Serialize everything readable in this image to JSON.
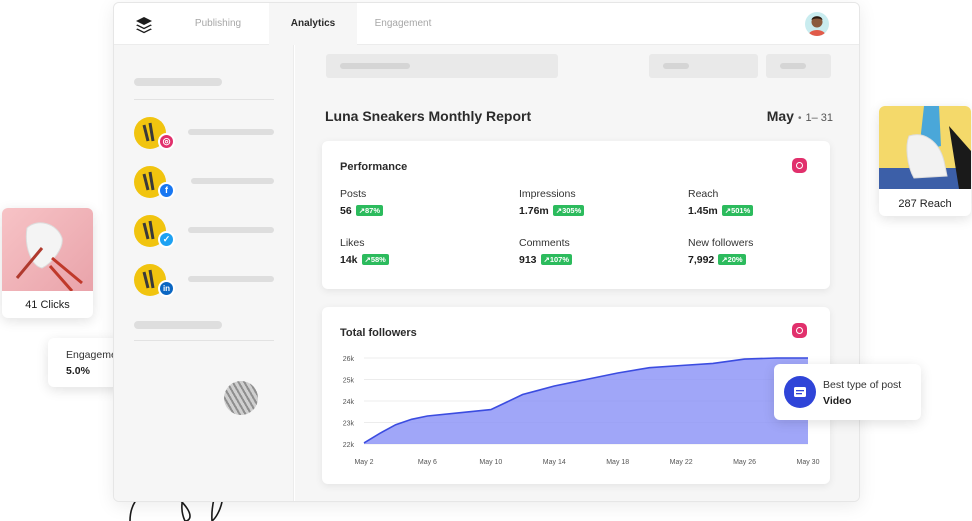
{
  "nav": {
    "tabs": [
      {
        "label": "Publishing"
      },
      {
        "label": "Analytics"
      },
      {
        "label": "Engagement"
      }
    ],
    "active_tab": "Analytics"
  },
  "report": {
    "title": "Luna Sneakers Monthly Report",
    "month": "May",
    "range": "1– 31"
  },
  "performance": {
    "title": "Performance",
    "network_icon": "instagram-icon",
    "metrics": [
      {
        "label": "Posts",
        "value": "56",
        "change": "87%"
      },
      {
        "label": "Impressions",
        "value": "1.76m",
        "change": "305%"
      },
      {
        "label": "Reach",
        "value": "1.45m",
        "change": "501%"
      },
      {
        "label": "Likes",
        "value": "14k",
        "change": "58%"
      },
      {
        "label": "Comments",
        "value": "913",
        "change": "107%"
      },
      {
        "label": "New followers",
        "value": "7,992",
        "change": "20%"
      }
    ]
  },
  "followers": {
    "title": "Total followers",
    "network_icon": "instagram-icon"
  },
  "chart_data": {
    "type": "area",
    "title": "Total followers",
    "xlabel": "",
    "ylabel": "",
    "x_ticks": [
      "May 2",
      "May 6",
      "May 10",
      "May 14",
      "May 18",
      "May 22",
      "May 26",
      "May 30"
    ],
    "y_ticks": [
      "22k",
      "23k",
      "24k",
      "25k",
      "26k"
    ],
    "ylim": [
      22,
      26
    ],
    "xlim": [
      2,
      30
    ],
    "grid": true,
    "color": "#8f96f7",
    "line_color": "#3b4ce0",
    "series": [
      {
        "x": [
          2,
          3,
          4,
          5,
          6,
          8,
          10,
          11,
          12,
          13,
          14,
          16,
          18,
          20,
          22,
          24,
          26,
          28,
          30
        ],
        "y": [
          22.05,
          22.5,
          22.9,
          23.15,
          23.3,
          23.45,
          23.6,
          23.95,
          24.3,
          24.5,
          24.7,
          25.0,
          25.3,
          25.55,
          25.65,
          25.75,
          25.95,
          26.0,
          26.0
        ]
      }
    ]
  },
  "floats": {
    "clicks": "41 Clicks",
    "reach": "287 Reach",
    "engagement_label": "Engagement Rate",
    "engagement_value": "5.0%",
    "best_post_label": "Best type of post",
    "best_post_value": "Video"
  },
  "colors": {
    "accent_blue": "#2f44d8",
    "growth_green": "#2cbb5d",
    "instagram": "#e1306c",
    "facebook": "#1877f2",
    "twitter": "#1da1f2",
    "linkedin": "#0a66c2"
  }
}
